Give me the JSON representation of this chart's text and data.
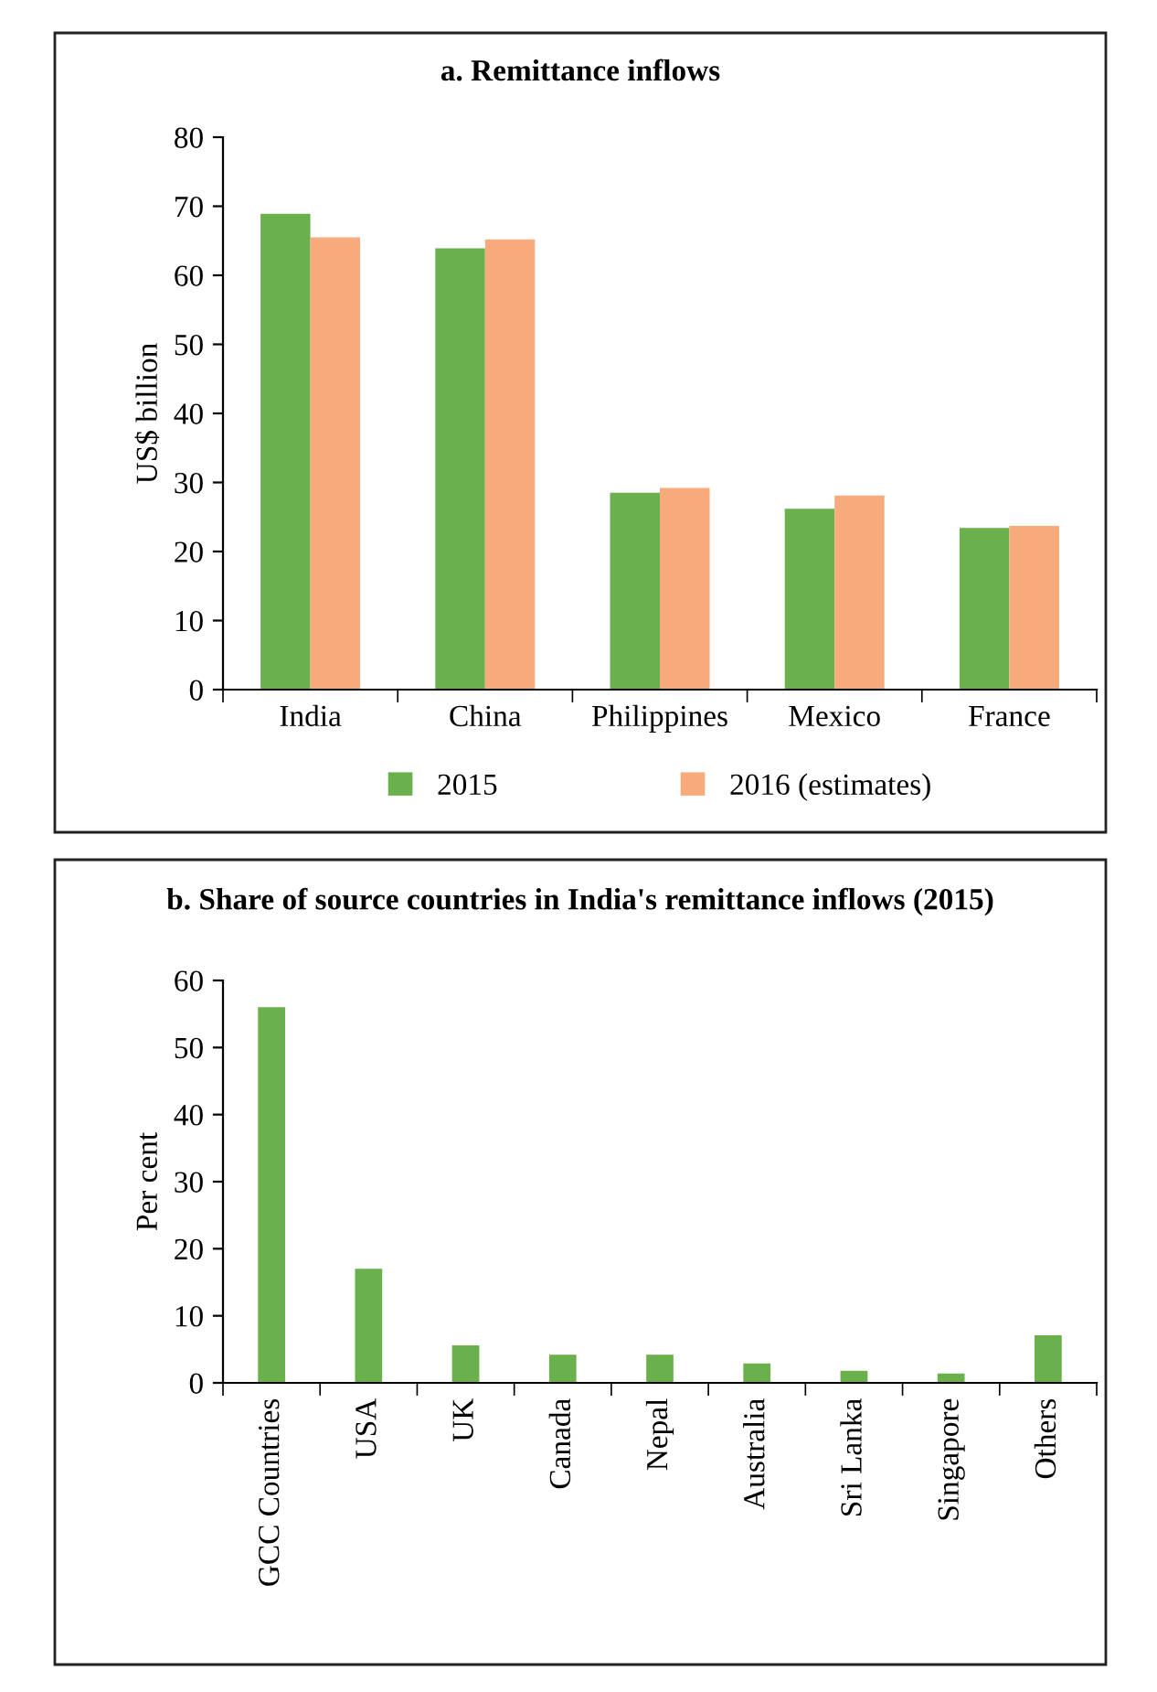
{
  "chart_data": [
    {
      "type": "bar",
      "title": "a. Remittance inflows",
      "ylabel": "US$ billion",
      "categories": [
        "India",
        "China",
        "Philippines",
        "Mexico",
        "France"
      ],
      "series": [
        {
          "name": "2015",
          "color": "#6ab04c",
          "values": [
            68.9,
            63.9,
            28.5,
            26.2,
            23.4
          ]
        },
        {
          "name": "2016 (estimates)",
          "color": "#f7ab7c",
          "values": [
            65.5,
            65.2,
            29.2,
            28.1,
            23.7
          ]
        }
      ],
      "ylim": [
        0,
        80
      ],
      "yticks": [
        0,
        10,
        20,
        30,
        40,
        50,
        60,
        70,
        80
      ],
      "grid": false,
      "legend": "bottom"
    },
    {
      "type": "bar",
      "title": "b. Share of source countries in India's remittance inflows (2015)",
      "ylabel": "Per cent",
      "categories": [
        "GCC Countries",
        "USA",
        "UK",
        "Canada",
        "Nepal",
        "Australia",
        "Sri Lanka",
        "Singapore",
        "Others"
      ],
      "series": [
        {
          "color": "#6ab04c",
          "values": [
            56.0,
            17.0,
            5.6,
            4.2,
            4.2,
            2.9,
            1.8,
            1.4,
            7.1
          ]
        }
      ],
      "ylim": [
        0,
        60
      ],
      "yticks": [
        0,
        10,
        20,
        30,
        40,
        50,
        60
      ],
      "grid": false,
      "legend": false
    }
  ]
}
